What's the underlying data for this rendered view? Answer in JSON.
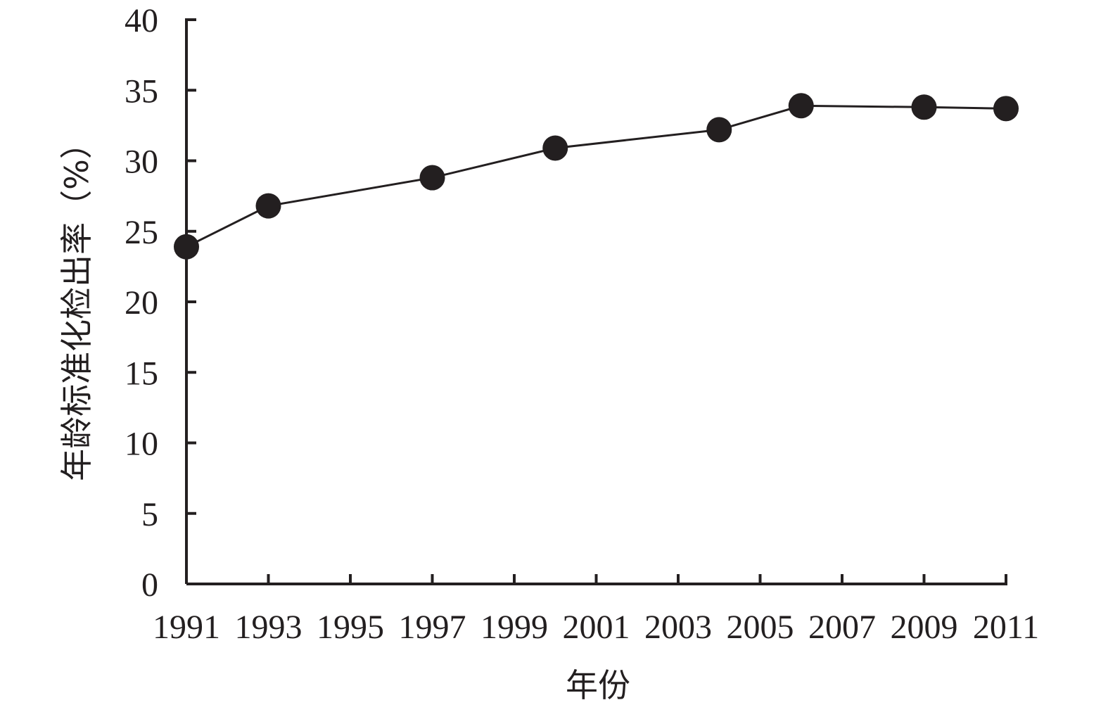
{
  "chart_data": {
    "type": "line",
    "xlabel": "年份",
    "ylabel": "年龄标准化检出率（%）",
    "x_ticks": [
      "1991",
      "1993",
      "1995",
      "1997",
      "1999",
      "2001",
      "2003",
      "2005",
      "2007",
      "2009",
      "2011"
    ],
    "xlim": [
      1991,
      2011
    ],
    "ylim": [
      0,
      40
    ],
    "y_ticks": [
      0,
      5,
      10,
      15,
      20,
      25,
      30,
      35,
      40
    ],
    "grid": false,
    "legend": "none",
    "series": [
      {
        "x": [
          1991,
          1993,
          1997,
          2000,
          2004,
          2006,
          2009,
          2011
        ],
        "y": [
          23.9,
          26.8,
          28.8,
          30.9,
          32.2,
          33.9,
          33.8,
          33.7
        ],
        "marker": "filled-circle",
        "color": "#231f20"
      }
    ]
  }
}
